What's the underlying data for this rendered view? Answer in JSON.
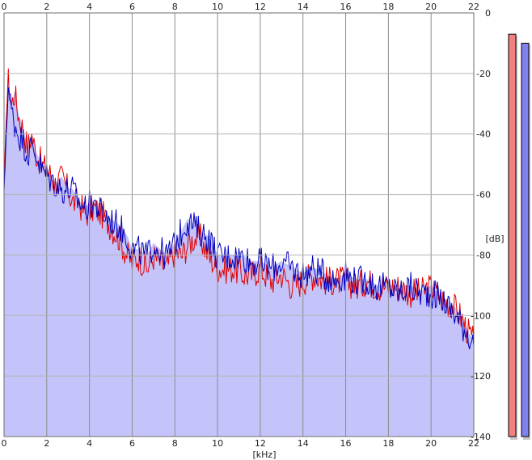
{
  "chart_data": {
    "type": "area",
    "xlabel": "[kHz]",
    "ylabel": "[dB]",
    "xlim": [
      0,
      22
    ],
    "ylim": [
      -140,
      0
    ],
    "x_ticks": [
      "0",
      "2",
      "4",
      "6",
      "8",
      "10",
      "12",
      "14",
      "16",
      "18",
      "20",
      "22"
    ],
    "y_ticks": [
      "0",
      "-20",
      "-40",
      "-60",
      "-80",
      "-100",
      "-120",
      "-140"
    ],
    "grid": true,
    "fill_color": "#c4c4fa",
    "series": [
      {
        "color": "#e00000",
        "points": [
          [
            0,
            -60
          ],
          [
            0.1,
            -34
          ],
          [
            0.2,
            -22
          ],
          [
            0.35,
            -30
          ],
          [
            0.5,
            -26
          ],
          [
            0.7,
            -34
          ],
          [
            0.9,
            -38
          ],
          [
            1.1,
            -44
          ],
          [
            1.3,
            -40
          ],
          [
            1.5,
            -46
          ],
          [
            1.8,
            -50
          ],
          [
            2.1,
            -52
          ],
          [
            2.4,
            -56
          ],
          [
            2.7,
            -54
          ],
          [
            3.0,
            -58
          ],
          [
            3.2,
            -62
          ],
          [
            3.5,
            -62
          ],
          [
            3.8,
            -66
          ],
          [
            4.2,
            -64
          ],
          [
            4.6,
            -66
          ],
          [
            5.0,
            -70
          ],
          [
            5.4,
            -74
          ],
          [
            5.8,
            -80
          ],
          [
            6.0,
            -82
          ],
          [
            6.3,
            -80
          ],
          [
            6.7,
            -84
          ],
          [
            7.0,
            -80
          ],
          [
            7.3,
            -82
          ],
          [
            7.6,
            -84
          ],
          [
            8.0,
            -78
          ],
          [
            8.3,
            -80
          ],
          [
            8.6,
            -76
          ],
          [
            8.9,
            -74
          ],
          [
            9.2,
            -74
          ],
          [
            9.6,
            -80
          ],
          [
            10.0,
            -84
          ],
          [
            10.4,
            -84
          ],
          [
            10.8,
            -84
          ],
          [
            11.2,
            -86
          ],
          [
            11.6,
            -86
          ],
          [
            12.0,
            -84
          ],
          [
            12.5,
            -88
          ],
          [
            13.0,
            -86
          ],
          [
            13.5,
            -90
          ],
          [
            14.0,
            -88
          ],
          [
            14.5,
            -86
          ],
          [
            15.0,
            -88
          ],
          [
            15.5,
            -88
          ],
          [
            16.0,
            -88
          ],
          [
            16.5,
            -90
          ],
          [
            17.0,
            -88
          ],
          [
            17.5,
            -90
          ],
          [
            18.0,
            -90
          ],
          [
            18.5,
            -90
          ],
          [
            19.0,
            -92
          ],
          [
            19.5,
            -92
          ],
          [
            20.0,
            -90
          ],
          [
            20.5,
            -94
          ],
          [
            21.0,
            -96
          ],
          [
            21.4,
            -100
          ],
          [
            21.8,
            -106
          ],
          [
            22.0,
            -108
          ]
        ]
      },
      {
        "color": "#0000c0",
        "points": [
          [
            0,
            -60
          ],
          [
            0.1,
            -40
          ],
          [
            0.2,
            -24
          ],
          [
            0.35,
            -32
          ],
          [
            0.5,
            -36
          ],
          [
            0.7,
            -40
          ],
          [
            0.9,
            -42
          ],
          [
            1.1,
            -46
          ],
          [
            1.3,
            -44
          ],
          [
            1.5,
            -46
          ],
          [
            1.8,
            -52
          ],
          [
            2.1,
            -54
          ],
          [
            2.4,
            -56
          ],
          [
            2.7,
            -58
          ],
          [
            3.0,
            -58
          ],
          [
            3.2,
            -58
          ],
          [
            3.5,
            -62
          ],
          [
            3.8,
            -64
          ],
          [
            4.2,
            -62
          ],
          [
            4.6,
            -66
          ],
          [
            5.0,
            -68
          ],
          [
            5.4,
            -70
          ],
          [
            5.8,
            -74
          ],
          [
            6.0,
            -78
          ],
          [
            6.3,
            -78
          ],
          [
            6.7,
            -80
          ],
          [
            7.0,
            -76
          ],
          [
            7.3,
            -78
          ],
          [
            7.6,
            -80
          ],
          [
            8.0,
            -76
          ],
          [
            8.3,
            -72
          ],
          [
            8.6,
            -68
          ],
          [
            8.9,
            -70
          ],
          [
            9.2,
            -72
          ],
          [
            9.6,
            -74
          ],
          [
            10.0,
            -80
          ],
          [
            10.4,
            -80
          ],
          [
            10.8,
            -80
          ],
          [
            11.2,
            -80
          ],
          [
            11.6,
            -82
          ],
          [
            12.0,
            -82
          ],
          [
            12.5,
            -84
          ],
          [
            13.0,
            -82
          ],
          [
            13.5,
            -84
          ],
          [
            14.0,
            -86
          ],
          [
            14.5,
            -84
          ],
          [
            15.0,
            -86
          ],
          [
            15.5,
            -88
          ],
          [
            16.0,
            -86
          ],
          [
            16.5,
            -88
          ],
          [
            17.0,
            -88
          ],
          [
            17.5,
            -90
          ],
          [
            18.0,
            -90
          ],
          [
            18.5,
            -92
          ],
          [
            19.0,
            -90
          ],
          [
            19.5,
            -92
          ],
          [
            20.0,
            -92
          ],
          [
            20.5,
            -94
          ],
          [
            21.0,
            -98
          ],
          [
            21.4,
            -102
          ],
          [
            21.8,
            -106
          ],
          [
            22.0,
            -110
          ]
        ]
      }
    ],
    "meters": [
      {
        "channel": "left",
        "color": "#f28080",
        "value_db": -7
      },
      {
        "channel": "right",
        "color": "#8080ee",
        "value_db": -10
      }
    ]
  }
}
